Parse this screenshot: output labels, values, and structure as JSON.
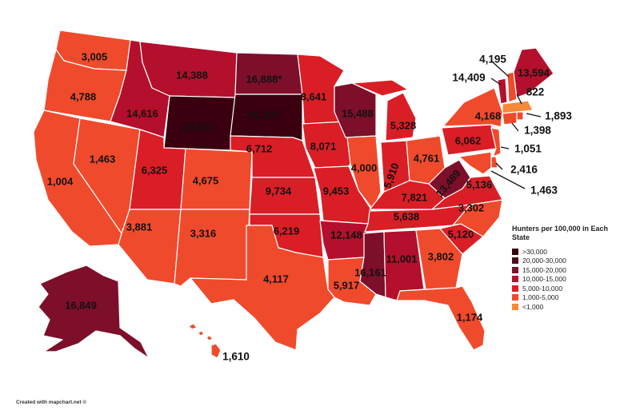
{
  "legend": {
    "title": "Hunters per 100,000 in Each State",
    "items": [
      {
        "label": ">30,000",
        "color": "#3a0010"
      },
      {
        "label": "20,000-30,000",
        "color": "#4e0a1b"
      },
      {
        "label": "15,000-20,000",
        "color": "#7d0f2a"
      },
      {
        "label": "10,000-15,000",
        "color": "#b40f2c"
      },
      {
        "label": "5,000-10,000",
        "color": "#d91e26"
      },
      {
        "label": "1,000-5,000",
        "color": "#f04a2c"
      },
      {
        "label": "<1,000",
        "color": "#f6883a"
      }
    ]
  },
  "credit": "Created with mapchart.net ©",
  "states": {
    "WA": "3,005",
    "OR": "4,788",
    "CA": "1,004",
    "NV": "1,463",
    "ID": "14,616",
    "MT": "14,388",
    "WY": "23,911",
    "UT": "6,325",
    "AZ": "3,881",
    "CO": "4,675",
    "NM": "3,316",
    "ND": "16,888*",
    "SD": "31,197",
    "NE": "6,712",
    "KS": "9,734",
    "OK": "6,219",
    "TX": "4,117",
    "MN": "8,641",
    "IA": "8,071",
    "MO": "9,453",
    "AR": "12,148",
    "LA": "5,917",
    "WI": "15,488",
    "IL": "4,000",
    "MI": "5,328",
    "IN": "5,910",
    "OH": "4,761",
    "KY": "7,821",
    "TN": "5,638",
    "MS": "16,161",
    "AL": "11,001",
    "GA": "3,802",
    "FL": "1,174",
    "SC": "5,120",
    "NC": "3,302",
    "VA": "5,136",
    "WV": "13,489",
    "PA": "6,062",
    "NY": "4,168",
    "ME": "13,594",
    "AK": "16,849",
    "HI": "1,610",
    "VT": "14,409",
    "NH": "4,195",
    "MA": "822",
    "RI": "1,893",
    "CT": "1,398",
    "NJ": "1,051",
    "DE": "2,416",
    "MD": "1,463"
  }
}
